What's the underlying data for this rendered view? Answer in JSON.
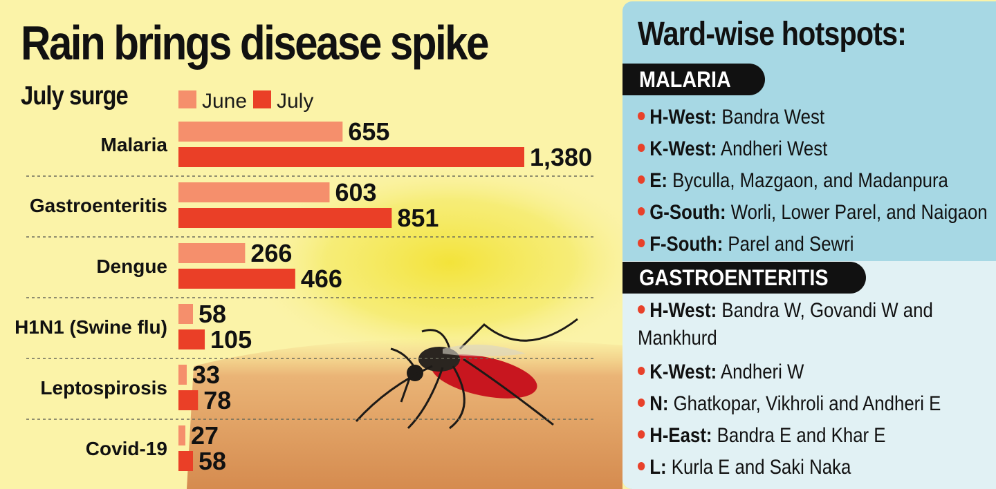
{
  "title": "Rain brings disease spike",
  "chart_data": {
    "type": "bar",
    "orientation": "horizontal",
    "title": "July surge",
    "categories": [
      "Malaria",
      "Gastroenteritis",
      "Dengue",
      "H1N1 (Swine flu)",
      "Leptospirosis",
      "Covid-19"
    ],
    "series": [
      {
        "name": "June",
        "values": [
          655,
          603,
          266,
          58,
          33,
          27
        ],
        "labels": [
          "655",
          "603",
          "266",
          "58",
          "33",
          "27"
        ],
        "color": "#f58f6c"
      },
      {
        "name": "July",
        "values": [
          1380,
          851,
          466,
          105,
          78,
          58
        ],
        "labels": [
          "1,380",
          "851",
          "466",
          "105",
          "78",
          "58"
        ],
        "color": "#ea3f27"
      }
    ],
    "legend": "top",
    "grid": false
  },
  "hotspots": {
    "title": "Ward-wise hotspots:",
    "sections": [
      {
        "name": "MALARIA",
        "items": [
          {
            "ward": "H-West:",
            "areas": " Bandra West"
          },
          {
            "ward": "K-West:",
            "areas": " Andheri West"
          },
          {
            "ward": "E:",
            "areas": " Byculla, Mazgaon, and Madanpura"
          },
          {
            "ward": "G-South:",
            "areas": " Worli, Lower Parel, and Naigaon"
          },
          {
            "ward": "F-South:",
            "areas": " Parel and Sewri"
          }
        ]
      },
      {
        "name": "GASTROENTERITIS",
        "items": [
          {
            "ward": "H-West:",
            "areas": " Bandra W, Govandi W and Mankhurd"
          },
          {
            "ward": "K-West:",
            "areas": " Andheri W"
          },
          {
            "ward": "N:",
            "areas": " Ghatkopar, Vikhroli and Andheri E"
          },
          {
            "ward": "H-East:",
            "areas": " Bandra E and Khar E"
          },
          {
            "ward": "L:",
            "areas": " Kurla E and Saki Naka"
          }
        ]
      }
    ],
    "bullet_color": "#e8412a",
    "malaria_bg": "#a7d8e4",
    "gastro_bg": "#e1f1f4"
  }
}
